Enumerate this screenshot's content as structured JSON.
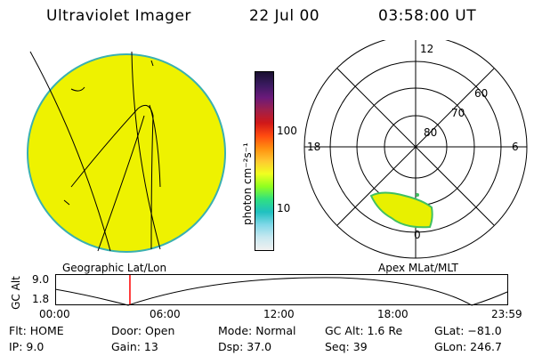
{
  "header": {
    "title": "Ultraviolet Imager",
    "date": "22 Jul 00",
    "time": "03:58:00 UT"
  },
  "colorbar": {
    "unit_label": "photon cm⁻²s⁻¹",
    "ticks": [
      "100",
      "10"
    ],
    "colors": [
      "#1a1030",
      "#3a1a60",
      "#6a1a7a",
      "#a0204a",
      "#d01818",
      "#ff4a10",
      "#ff9010",
      "#ffc830",
      "#f0ff20",
      "#90ff20",
      "#30e080",
      "#20c0c0",
      "#80d8e8",
      "#c8e8f0",
      "#f0f0f0"
    ]
  },
  "polar": {
    "hour_labels": {
      "top": "12",
      "left": "18",
      "right": "6",
      "bottom": "0"
    },
    "lat_labels": [
      "60",
      "70",
      "80"
    ]
  },
  "left_label": "Geographic Lat/Lon",
  "right_label": "Apex MLat/MLT",
  "altitude_plot": {
    "ylabel": "GC Alt",
    "yticks": [
      "9.0",
      "1.8"
    ],
    "xticks": [
      "00:00",
      "06:00",
      "12:00",
      "18:00",
      "23:59"
    ],
    "current_time_hours": 3.967
  },
  "info": {
    "flt": "Flt: HOME",
    "ip": "IP:  9.0",
    "door": "Door: Open",
    "gain": "Gain: 13",
    "mode": "Mode: Normal",
    "dsp": "Dsp:   37.0",
    "gcalt": "GC Alt: 1.6 Re",
    "seq": "Seq: 39",
    "glat": "GLat: −81.0",
    "glon": "GLon: 246.7"
  },
  "colors": {
    "disk": "#eef200",
    "disk_edge": "#3ab0b0",
    "aurora": "#e8f000",
    "aurora_edge": "#40c060",
    "marker": "#ff0000"
  }
}
